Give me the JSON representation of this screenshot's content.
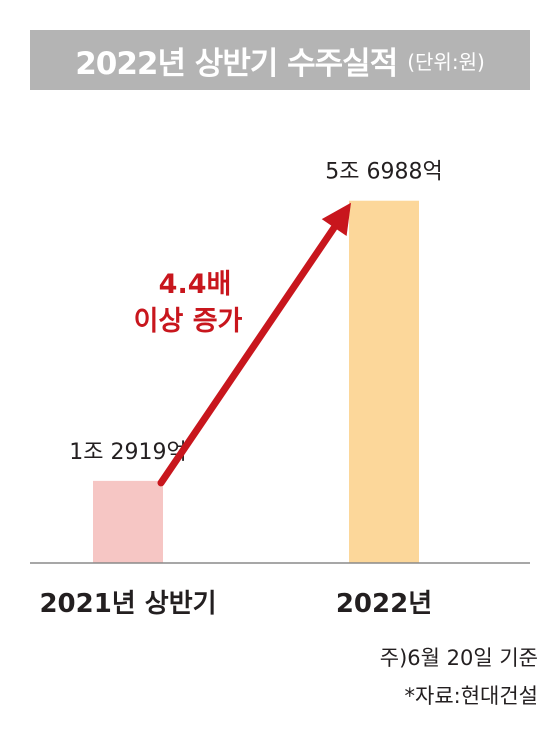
{
  "chart_data": {
    "type": "bar",
    "title": "2022년 상반기 수주실적",
    "unit_note": "(단위:원)",
    "categories": [
      "2021년 상반기",
      "2022년"
    ],
    "values": [
      12919,
      56988
    ],
    "value_labels": [
      "1조 2919억",
      "5조 6988억"
    ],
    "value_unit": "억원",
    "bar_colors": [
      "#f6c6c4",
      "#fcd79a"
    ],
    "annotation": {
      "line1": "4.4배",
      "line2": "이상 증가",
      "color": "#c8161d"
    },
    "ylim": [
      0,
      70000
    ],
    "grid": false,
    "legend": "none"
  },
  "footnotes": {
    "date_note": "주)6월 20일 기준",
    "source": "*자료:현대건설"
  }
}
